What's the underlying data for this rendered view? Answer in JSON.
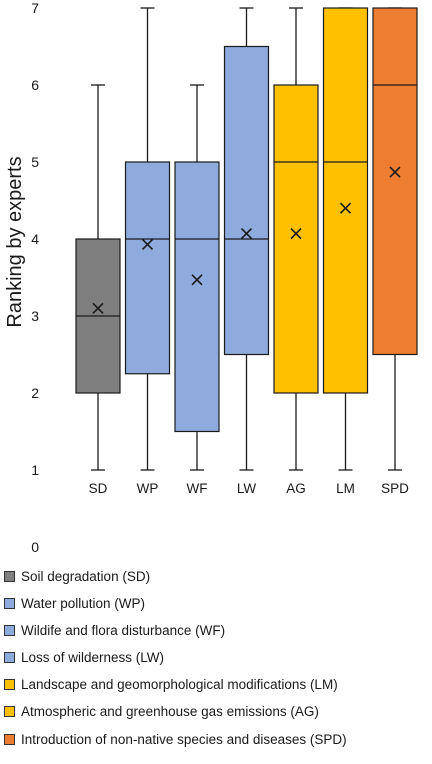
{
  "chart_data": {
    "type": "box",
    "ylabel": "Ranking by experts",
    "ylim": [
      0,
      7
    ],
    "y_ticks": [
      0,
      1,
      2,
      3,
      4,
      5,
      6,
      7
    ],
    "grid": false,
    "legend_position": "bottom",
    "categories": [
      "SD",
      "WP",
      "WF",
      "LW",
      "AG",
      "LM",
      "SPD"
    ],
    "boxes": [
      {
        "label": "SD",
        "min": 1,
        "q1": 2,
        "median": 3,
        "q3": 4,
        "max": 6,
        "mean": 3.1,
        "color": "#7f7f7f"
      },
      {
        "label": "WP",
        "min": 1,
        "q1": 2.25,
        "median": 4,
        "q3": 5,
        "max": 7,
        "mean": 3.93,
        "color": "#8faadc"
      },
      {
        "label": "WF",
        "min": 1,
        "q1": 1.5,
        "median": 4,
        "q3": 5,
        "max": 6,
        "mean": 3.47,
        "color": "#8faadc"
      },
      {
        "label": "LW",
        "min": 1,
        "q1": 2.5,
        "median": 4,
        "q3": 6.5,
        "max": 7,
        "mean": 4.07,
        "color": "#8faadc"
      },
      {
        "label": "AG",
        "min": 1,
        "q1": 2,
        "median": 5,
        "q3": 6,
        "max": 7,
        "mean": 4.07,
        "color": "#ffc000"
      },
      {
        "label": "LM",
        "min": 1,
        "q1": 2,
        "median": 5,
        "q3": 7,
        "max": 7,
        "mean": 4.4,
        "color": "#ffc000"
      },
      {
        "label": "SPD",
        "min": 1,
        "q1": 2.5,
        "median": 6,
        "q3": 7,
        "max": 7,
        "mean": 4.87,
        "color": "#ed7d31"
      }
    ],
    "legend": [
      {
        "label": "Soil degradation (SD)",
        "color": "#7f7f7f"
      },
      {
        "label": "Water pollution (WP)",
        "color": "#8faadc"
      },
      {
        "label": "Wildife and flora disturbance (WF)",
        "color": "#8faadc"
      },
      {
        "label": "Loss of wilderness (LW)",
        "color": "#8faadc"
      },
      {
        "label": "Landscape and geomorphological modifications (LM)",
        "color": "#ffc000"
      },
      {
        "label": " Atmospheric and greenhouse gas emissions (AG)",
        "color": "#ffc000"
      },
      {
        "label": "Introduction of non-native species and diseases (SPD)",
        "color": "#ed7d31"
      }
    ]
  }
}
